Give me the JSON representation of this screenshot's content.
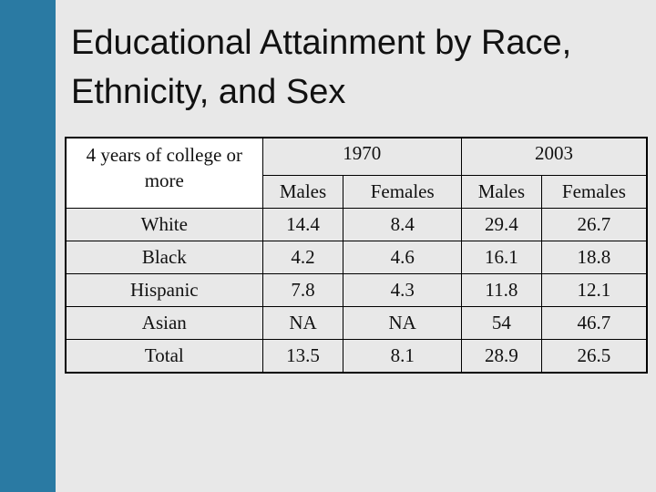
{
  "title": "Educational Attainment by Race, Ethnicity, and Sex",
  "table": {
    "corner": "4 years of college or more",
    "years": [
      "1970",
      "2003"
    ],
    "subheaders": [
      "Males",
      "Females",
      "Males",
      "Females"
    ],
    "rows": [
      [
        "White",
        14.4,
        8.4,
        29.4,
        26.7
      ],
      [
        "Black",
        4.2,
        4.6,
        16.1,
        18.8
      ],
      [
        "Hispanic",
        7.8,
        4.3,
        11.8,
        12.1
      ],
      [
        "Asian",
        "NA",
        "NA",
        54,
        46.7
      ],
      [
        "Total",
        13.5,
        8.1,
        28.9,
        26.5
      ]
    ]
  }
}
